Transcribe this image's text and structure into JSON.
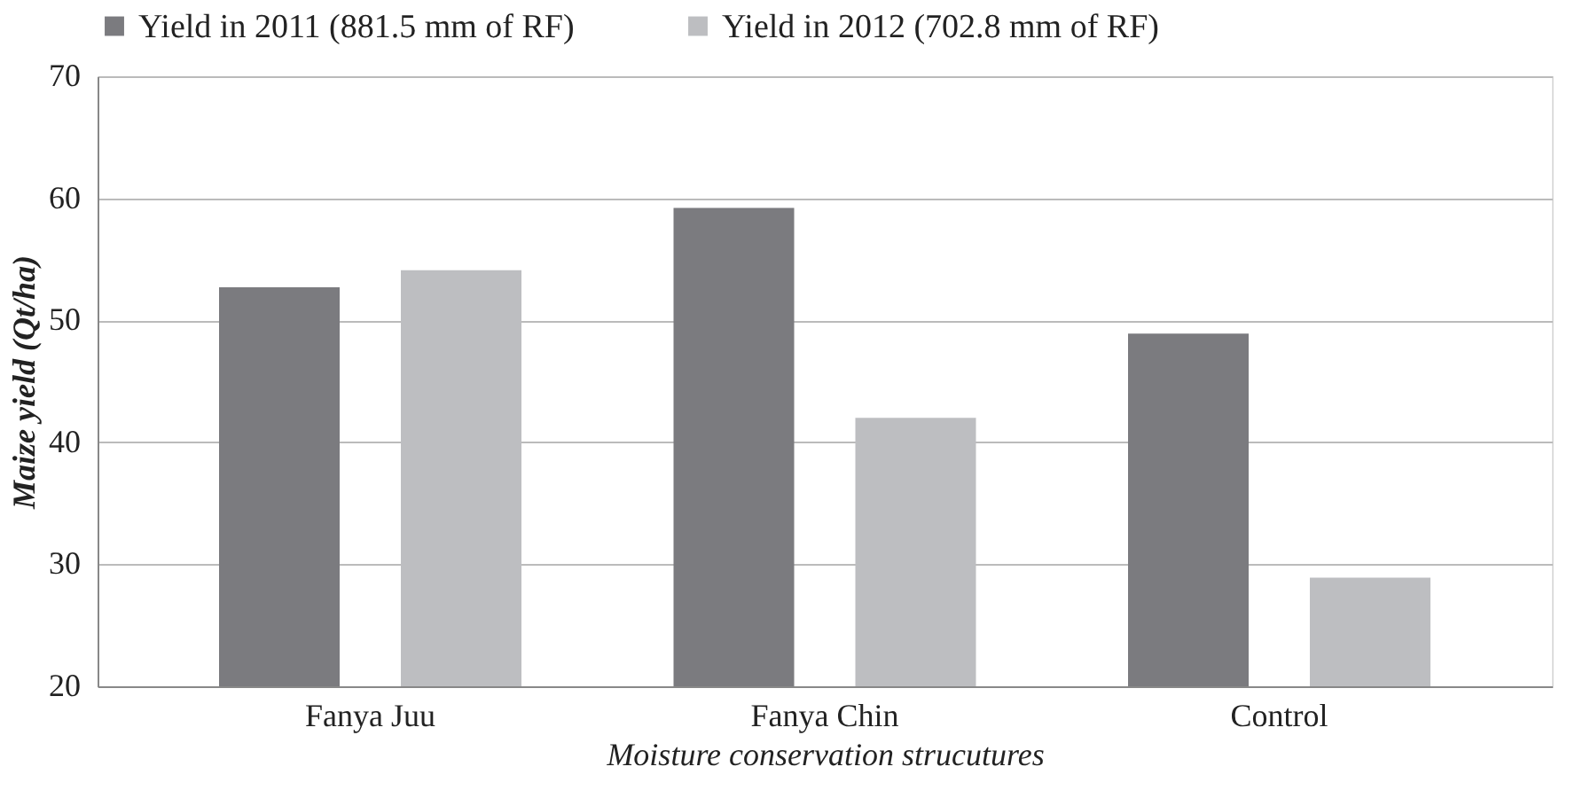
{
  "chart_data": {
    "type": "bar",
    "xlabel": "Moisture conservation strucutures",
    "ylabel": "Maize yield (Qt/ha)",
    "categories": [
      "Fanya Juu",
      "Fanya Chin",
      "Control"
    ],
    "series": [
      {
        "name": "Yield in 2011 (881.5 mm of RF)",
        "color": "#7b7b7f",
        "values": [
          52.7,
          59.2,
          48.9
        ]
      },
      {
        "name": "Yield in 2012 (702.8 mm of RF)",
        "color": "#bdbec1",
        "values": [
          54.1,
          42.0,
          28.9
        ]
      }
    ],
    "ylim": [
      20,
      70
    ],
    "yticks": [
      20,
      30,
      40,
      50,
      60,
      70
    ],
    "grid": "y",
    "legend": "top"
  }
}
